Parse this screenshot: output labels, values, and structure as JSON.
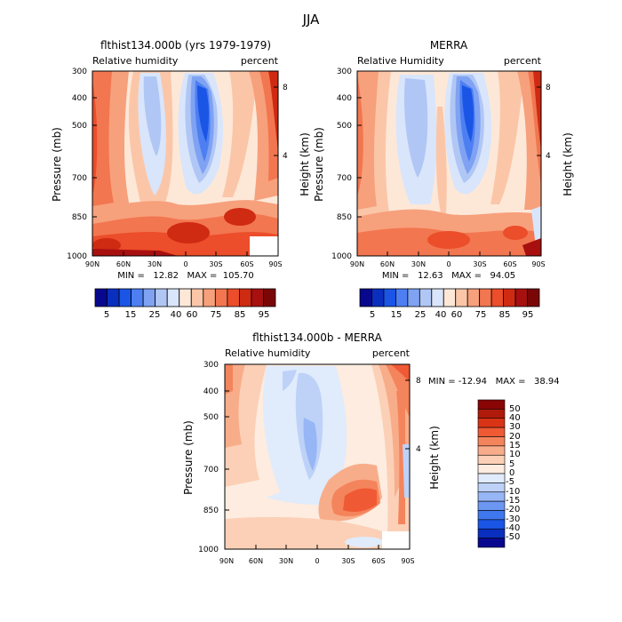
{
  "figure": {
    "title": "JJA"
  },
  "colors": {
    "abs_scale": [
      "#08088f",
      "#0a2fbf",
      "#1a55e6",
      "#4d7ff2",
      "#7fa2f2",
      "#b0c7f5",
      "#d9e5fb",
      "#fde8d8",
      "#fbc6a8",
      "#f7a07c",
      "#f2764f",
      "#ec4d2a",
      "#cf2a12",
      "#a81010",
      "#7a0606"
    ],
    "diff_scale": [
      "#08088f",
      "#0a2fbf",
      "#1a55e6",
      "#3f77ee",
      "#6b96f2",
      "#97b6f5",
      "#bed2f8",
      "#e0ebfc",
      "#fdecdf",
      "#fbd0b6",
      "#f8ad8a",
      "#f4845c",
      "#ef5a35",
      "#d93416",
      "#b01a0a",
      "#8a0505"
    ]
  },
  "chart_data": [
    {
      "type": "heatmap",
      "title": "flthist134.000b (yrs 1979-1979)",
      "left_label": "Relative humidity",
      "right_label": "percent",
      "xlabel": "",
      "ylabel": "Pressure (mb)",
      "y2label": "Height (km)",
      "x_ticks": [
        "90N",
        "60N",
        "30N",
        "0",
        "30S",
        "60S",
        "90S"
      ],
      "y_ticks": [
        "300",
        "400",
        "500",
        "700",
        "850",
        "1000"
      ],
      "y2_ticks": [
        "8",
        "4"
      ],
      "stats": "MIN =   12.82   MAX =  105.70",
      "colorbar_labels": [
        "5",
        "15",
        "25",
        "40",
        "60",
        "75",
        "85",
        "95"
      ]
    },
    {
      "type": "heatmap",
      "title": "MERRA",
      "left_label": "Relative Humidity",
      "right_label": "percent",
      "xlabel": "",
      "ylabel": "Pressure (mb)",
      "y2label": "Height (km)",
      "x_ticks": [
        "90N",
        "60N",
        "30N",
        "0",
        "30S",
        "60S",
        "90S"
      ],
      "y_ticks": [
        "300",
        "400",
        "500",
        "700",
        "850",
        "1000"
      ],
      "y2_ticks": [
        "8",
        "4"
      ],
      "stats": "MIN =   12.63   MAX =   94.05",
      "colorbar_labels": [
        "5",
        "15",
        "25",
        "40",
        "60",
        "75",
        "85",
        "95"
      ]
    },
    {
      "type": "heatmap",
      "title": "flthist134.000b - MERRA",
      "left_label": "Relative humidity",
      "right_label": "percent",
      "xlabel": "",
      "ylabel": "Pressure (mb)",
      "y2label": "Height (km)",
      "x_ticks": [
        "90N",
        "60N",
        "30N",
        "0",
        "30S",
        "60S",
        "90S"
      ],
      "y_ticks": [
        "300",
        "400",
        "500",
        "700",
        "850",
        "1000"
      ],
      "y2_ticks": [
        "8",
        "4"
      ],
      "stats": "MIN = -12.94   MAX =   38.94",
      "colorbar_labels": [
        "50",
        "40",
        "30",
        "20",
        "15",
        "10",
        "5",
        "0",
        "-5",
        "-10",
        "-15",
        "-20",
        "-30",
        "-40",
        "-50"
      ]
    }
  ]
}
